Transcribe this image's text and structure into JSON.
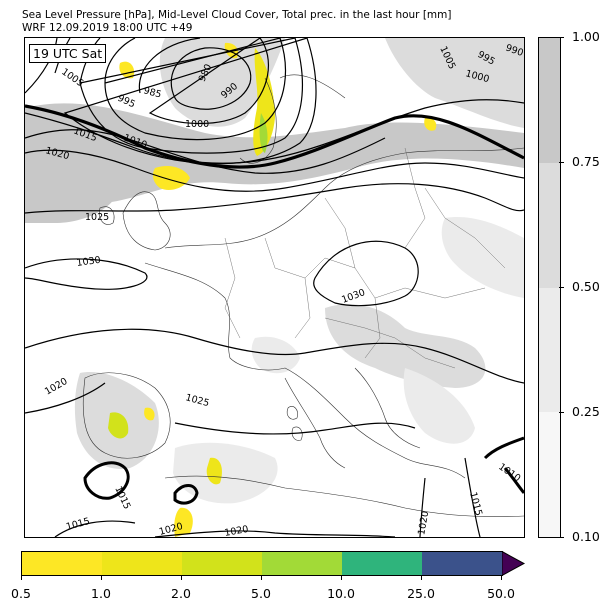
{
  "title_line1": "Sea Level Pressure [hPa], Mid-Level Cloud Cover, Total prec. in the last hour [mm]",
  "title_line2": "WRF 12.09.2019 18:00 UTC +49",
  "time_label": "19 UTC Sat",
  "colors": {
    "cloud_025_050": "#ebebeb",
    "cloud_050_075": "#dcdcdc",
    "cloud_075_100": "#c8c8c8",
    "precip": [
      "#fde725",
      "#eee51a",
      "#d2e21b",
      "#a2da37",
      "#2fb47c",
      "#3b528b",
      "#440154"
    ]
  },
  "cloud_colorbar": {
    "ticks": [
      "0.10",
      "0.25",
      "0.50",
      "0.75",
      "1.00"
    ],
    "levels": [
      0.1,
      0.25,
      0.5,
      0.75,
      1.0
    ],
    "colors": [
      "#f7f7f7",
      "#ebebeb",
      "#dcdcdc",
      "#c8c8c8"
    ]
  },
  "precip_colorbar": {
    "ticks": [
      "0.5",
      "1.0",
      "2.0",
      "5.0",
      "10.0",
      "25.0",
      "50.0"
    ],
    "levels": [
      0.5,
      1.0,
      2.0,
      5.0,
      10.0,
      25.0,
      50.0
    ],
    "colors": [
      "#fde725",
      "#eee51a",
      "#d2e21b",
      "#a2da37",
      "#2fb47c",
      "#3b528b"
    ],
    "extend_color": "#440154"
  },
  "isobar_labels": [
    "990",
    "995",
    "1000",
    "1005",
    "980",
    "985",
    "990",
    "995",
    "1000",
    "1005",
    "1010",
    "1015",
    "1020",
    "1025",
    "1030",
    "1030",
    "1025",
    "1020",
    "1020",
    "1015",
    "1015",
    "1020",
    "1020",
    "1015",
    "1010"
  ]
}
